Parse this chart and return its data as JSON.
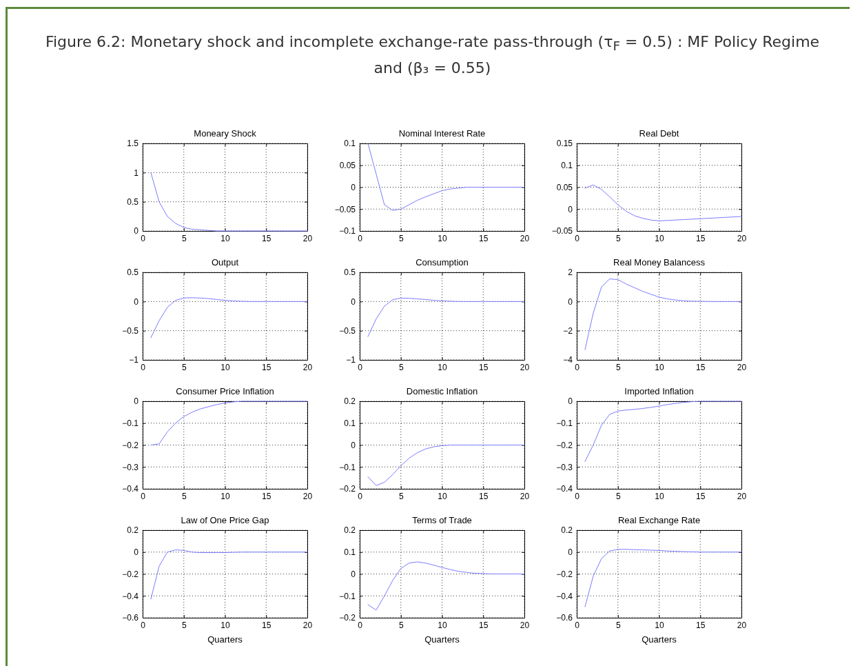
{
  "chart_data": [
    {
      "type": "other",
      "title": "Figure 6.2: Monetary shock and incomplete exchange-rate pass-through (τ$_{F}$ = 0.5) : MF Policy Regime and (β₃ = 0.55)"
    },
    {
      "type": "line",
      "title": "Moneary Shock",
      "x": [
        1,
        2,
        3,
        4,
        5,
        6,
        7,
        8,
        9,
        10,
        11,
        12,
        13,
        14,
        15,
        16,
        17,
        18,
        19,
        20
      ],
      "series": [
        {
          "color": "#7b7bff",
          "values": [
            1,
            0.5,
            0.25,
            0.13,
            0.06,
            0.03,
            0.02,
            0.01,
            0,
            0,
            0,
            0,
            0,
            0,
            0,
            0,
            0,
            0,
            0,
            0
          ]
        }
      ],
      "xlim": [
        0,
        20
      ],
      "xticks": [
        0,
        5,
        10,
        15,
        20
      ],
      "ylim": [
        0,
        1.5
      ],
      "yticks": [
        0,
        0.5,
        1,
        1.5
      ],
      "grid": true
    },
    {
      "type": "line",
      "title": "Nominal Interest Rate",
      "x": [
        1,
        2,
        3,
        4,
        5,
        6,
        7,
        8,
        9,
        10,
        11,
        12,
        13,
        14,
        15,
        16,
        17,
        18,
        19,
        20
      ],
      "series": [
        {
          "color": "#7b7bff",
          "values": [
            0.1,
            0.03,
            -0.04,
            -0.053,
            -0.05,
            -0.04,
            -0.03,
            -0.022,
            -0.015,
            -0.008,
            -0.004,
            -0.002,
            0,
            0,
            0,
            0,
            0,
            0,
            0,
            0
          ]
        }
      ],
      "xlim": [
        0,
        20
      ],
      "xticks": [
        0,
        5,
        10,
        15,
        20
      ],
      "ylim": [
        -0.1,
        0.1
      ],
      "yticks": [
        -0.1,
        -0.05,
        0,
        0.05,
        0.1
      ],
      "grid": true
    },
    {
      "type": "line",
      "title": "Real Debt",
      "x": [
        1,
        2,
        3,
        4,
        5,
        6,
        7,
        8,
        9,
        10,
        11,
        12,
        13,
        14,
        15,
        16,
        17,
        18,
        19,
        20
      ],
      "series": [
        {
          "color": "#7b7bff",
          "values": [
            0.048,
            0.055,
            0.045,
            0.028,
            0.01,
            -0.005,
            -0.015,
            -0.021,
            -0.025,
            -0.027,
            -0.026,
            -0.025,
            -0.024,
            -0.023,
            -0.022,
            -0.021,
            -0.02,
            -0.019,
            -0.018,
            -0.017
          ]
        }
      ],
      "xlim": [
        0,
        20
      ],
      "xticks": [
        0,
        5,
        10,
        15,
        20
      ],
      "ylim": [
        -0.05,
        0.15
      ],
      "yticks": [
        -0.05,
        0,
        0.05,
        0.1,
        0.15
      ],
      "grid": true
    },
    {
      "type": "line",
      "title": "Output",
      "x": [
        1,
        2,
        3,
        4,
        5,
        6,
        7,
        8,
        9,
        10,
        11,
        12,
        13,
        14,
        15,
        16,
        17,
        18,
        19,
        20
      ],
      "series": [
        {
          "color": "#7b7bff",
          "values": [
            -0.62,
            -0.33,
            -0.1,
            0.02,
            0.06,
            0.065,
            0.06,
            0.05,
            0.035,
            0.02,
            0.01,
            0.005,
            0,
            0,
            0,
            0,
            0,
            0,
            0,
            0
          ]
        }
      ],
      "xlim": [
        0,
        20
      ],
      "xticks": [
        0,
        5,
        10,
        15,
        20
      ],
      "ylim": [
        -1,
        0.5
      ],
      "yticks": [
        -1,
        -0.5,
        0,
        0.5
      ],
      "grid": true
    },
    {
      "type": "line",
      "title": "Consumption",
      "x": [
        1,
        2,
        3,
        4,
        5,
        6,
        7,
        8,
        9,
        10,
        11,
        12,
        13,
        14,
        15,
        16,
        17,
        18,
        19,
        20
      ],
      "series": [
        {
          "color": "#7b7bff",
          "values": [
            -0.6,
            -0.3,
            -0.08,
            0.03,
            0.06,
            0.055,
            0.045,
            0.035,
            0.02,
            0.01,
            0.005,
            0,
            0,
            0,
            0,
            0,
            0,
            0,
            0,
            0
          ]
        }
      ],
      "xlim": [
        0,
        20
      ],
      "xticks": [
        0,
        5,
        10,
        15,
        20
      ],
      "ylim": [
        -1,
        0.5
      ],
      "yticks": [
        -1,
        -0.5,
        0,
        0.5
      ],
      "grid": true
    },
    {
      "type": "line",
      "title": "Real Money Balancess",
      "x": [
        1,
        2,
        3,
        4,
        5,
        6,
        7,
        8,
        9,
        10,
        11,
        12,
        13,
        14,
        15,
        16,
        17,
        18,
        19,
        20
      ],
      "series": [
        {
          "color": "#7b7bff",
          "values": [
            -3.3,
            -0.8,
            1,
            1.55,
            1.5,
            1.2,
            0.95,
            0.7,
            0.5,
            0.3,
            0.18,
            0.1,
            0.05,
            0.02,
            0.01,
            0,
            0,
            0,
            0,
            0
          ]
        }
      ],
      "xlim": [
        0,
        20
      ],
      "xticks": [
        0,
        5,
        10,
        15,
        20
      ],
      "ylim": [
        -4,
        2
      ],
      "yticks": [
        -4,
        -2,
        0,
        2
      ],
      "grid": true
    },
    {
      "type": "line",
      "title": "Consumer Price Inflation",
      "x": [
        1,
        2,
        3,
        4,
        5,
        6,
        7,
        8,
        9,
        10,
        11,
        12,
        13,
        14,
        15,
        16,
        17,
        18,
        19,
        20
      ],
      "series": [
        {
          "color": "#7b7bff",
          "values": [
            -0.2,
            -0.195,
            -0.14,
            -0.1,
            -0.07,
            -0.05,
            -0.035,
            -0.025,
            -0.015,
            -0.008,
            -0.003,
            0,
            0,
            0,
            0,
            0,
            0,
            0,
            0,
            0
          ]
        }
      ],
      "xlim": [
        0,
        20
      ],
      "xticks": [
        0,
        5,
        10,
        15,
        20
      ],
      "ylim": [
        -0.4,
        0
      ],
      "yticks": [
        -0.4,
        -0.3,
        -0.2,
        -0.1,
        0
      ],
      "grid": true
    },
    {
      "type": "line",
      "title": "Domestic Inflation",
      "x": [
        1,
        2,
        3,
        4,
        5,
        6,
        7,
        8,
        9,
        10,
        11,
        12,
        13,
        14,
        15,
        16,
        17,
        18,
        19,
        20
      ],
      "series": [
        {
          "color": "#7b7bff",
          "values": [
            -0.145,
            -0.185,
            -0.17,
            -0.135,
            -0.095,
            -0.06,
            -0.035,
            -0.018,
            -0.008,
            -0.003,
            0,
            0,
            0,
            0,
            0,
            0,
            0,
            0,
            0,
            0
          ]
        }
      ],
      "xlim": [
        0,
        20
      ],
      "xticks": [
        0,
        5,
        10,
        15,
        20
      ],
      "ylim": [
        -0.2,
        0.2
      ],
      "yticks": [
        -0.2,
        -0.1,
        0,
        0.1,
        0.2
      ],
      "grid": true
    },
    {
      "type": "line",
      "title": "Imported Inflation",
      "x": [
        1,
        2,
        3,
        4,
        5,
        6,
        7,
        8,
        9,
        10,
        11,
        12,
        13,
        14,
        15,
        16,
        17,
        18,
        19,
        20
      ],
      "series": [
        {
          "color": "#7b7bff",
          "values": [
            -0.275,
            -0.2,
            -0.11,
            -0.06,
            -0.045,
            -0.04,
            -0.037,
            -0.033,
            -0.028,
            -0.022,
            -0.015,
            -0.01,
            -0.005,
            -0.002,
            0,
            0,
            0,
            0,
            0,
            0
          ]
        }
      ],
      "xlim": [
        0,
        20
      ],
      "xticks": [
        0,
        5,
        10,
        15,
        20
      ],
      "ylim": [
        -0.4,
        0
      ],
      "yticks": [
        -0.4,
        -0.3,
        -0.2,
        -0.1,
        0
      ],
      "grid": true
    },
    {
      "type": "line",
      "title": "Law of One Price Gap",
      "xlabel": "Quarters",
      "x": [
        1,
        2,
        3,
        4,
        5,
        6,
        7,
        8,
        9,
        10,
        11,
        12,
        13,
        14,
        15,
        16,
        17,
        18,
        19,
        20
      ],
      "series": [
        {
          "color": "#7b7bff",
          "values": [
            -0.43,
            -0.13,
            0,
            0.02,
            0.015,
            0,
            -0.005,
            -0.005,
            -0.005,
            -0.005,
            -0.002,
            0,
            0,
            0,
            0,
            0,
            0,
            0,
            0,
            0
          ]
        }
      ],
      "xlim": [
        0,
        20
      ],
      "xticks": [
        0,
        5,
        10,
        15,
        20
      ],
      "ylim": [
        -0.6,
        0.2
      ],
      "yticks": [
        -0.6,
        -0.4,
        -0.2,
        0,
        0.2
      ],
      "grid": true
    },
    {
      "type": "line",
      "title": "Terms of Trade",
      "xlabel": "Quarters",
      "x": [
        1,
        2,
        3,
        4,
        5,
        6,
        7,
        8,
        9,
        10,
        11,
        12,
        13,
        14,
        15,
        16,
        17,
        18,
        19,
        20
      ],
      "series": [
        {
          "color": "#7b7bff",
          "values": [
            -0.14,
            -0.165,
            -0.1,
            -0.03,
            0.025,
            0.05,
            0.055,
            0.05,
            0.04,
            0.03,
            0.02,
            0.012,
            0.007,
            0.003,
            0.002,
            0,
            0,
            0,
            0,
            0
          ]
        }
      ],
      "xlim": [
        0,
        20
      ],
      "xticks": [
        0,
        5,
        10,
        15,
        20
      ],
      "ylim": [
        -0.2,
        0.2
      ],
      "yticks": [
        -0.2,
        -0.1,
        0,
        0.1,
        0.2
      ],
      "grid": true
    },
    {
      "type": "line",
      "title": "Real Exchange Rate",
      "xlabel": "Quarters",
      "x": [
        1,
        2,
        3,
        4,
        5,
        6,
        7,
        8,
        9,
        10,
        11,
        12,
        13,
        14,
        15,
        16,
        17,
        18,
        19,
        20
      ],
      "series": [
        {
          "color": "#7b7bff",
          "values": [
            -0.5,
            -0.22,
            -0.06,
            0.01,
            0.025,
            0.025,
            0.022,
            0.02,
            0.017,
            0.015,
            0.01,
            0.007,
            0.004,
            0.002,
            0,
            0,
            0,
            0,
            0,
            0
          ]
        }
      ],
      "xlim": [
        0,
        20
      ],
      "xticks": [
        0,
        5,
        10,
        15,
        20
      ],
      "ylim": [
        -0.6,
        0.2
      ],
      "yticks": [
        -0.6,
        -0.4,
        -0.2,
        0,
        0.2
      ],
      "grid": true
    }
  ]
}
